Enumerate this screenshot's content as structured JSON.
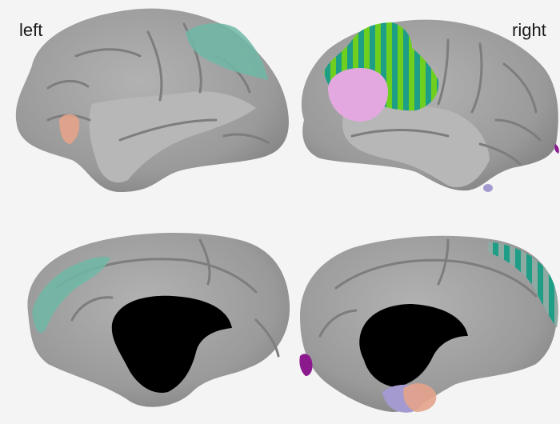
{
  "labels": {
    "left": "left",
    "right": "right"
  },
  "colors": {
    "background": "#f4f4f4",
    "cortex": "#9d9d9d",
    "cortex_light": "#b6b6b6",
    "cortex_dark": "#7b7b7b",
    "sulcus_shadow": "#808080",
    "ventricle_medial_wall": "#000000",
    "region_teal": "#6fb8a6",
    "region_teal_dark": "#1e9e86",
    "region_green": "#6fcf1f",
    "region_pink": "#e3a8e0",
    "region_salmon": "#e3a38a",
    "region_purple": "#8a1a8e",
    "region_lavender": "#a49ad0"
  },
  "views": [
    {
      "id": "left-lateral",
      "hemisphere": "left",
      "view": "lateral",
      "highlighted_regions": [
        "teal",
        "salmon"
      ]
    },
    {
      "id": "right-lateral",
      "hemisphere": "right",
      "view": "lateral",
      "highlighted_regions": [
        "teal-striped",
        "green-striped",
        "pink",
        "lavender"
      ]
    },
    {
      "id": "left-medial",
      "hemisphere": "left",
      "view": "medial",
      "highlighted_regions": [
        "teal"
      ]
    },
    {
      "id": "right-medial",
      "hemisphere": "right",
      "view": "medial",
      "highlighted_regions": [
        "teal-striped",
        "purple",
        "lavender",
        "salmon"
      ]
    }
  ]
}
